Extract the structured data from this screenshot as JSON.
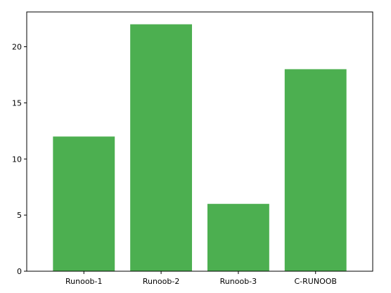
{
  "chart_data": {
    "type": "bar",
    "categories": [
      "Runoob-1",
      "Runoob-2",
      "Runoob-3",
      "C-RUNOOB"
    ],
    "values": [
      12,
      22,
      6,
      18
    ],
    "title": "",
    "xlabel": "",
    "ylabel": "",
    "ylim": [
      0,
      23.1
    ],
    "yticks": [
      0,
      5,
      10,
      15,
      20
    ],
    "bar_color": "#4CAF50",
    "grid": false
  }
}
